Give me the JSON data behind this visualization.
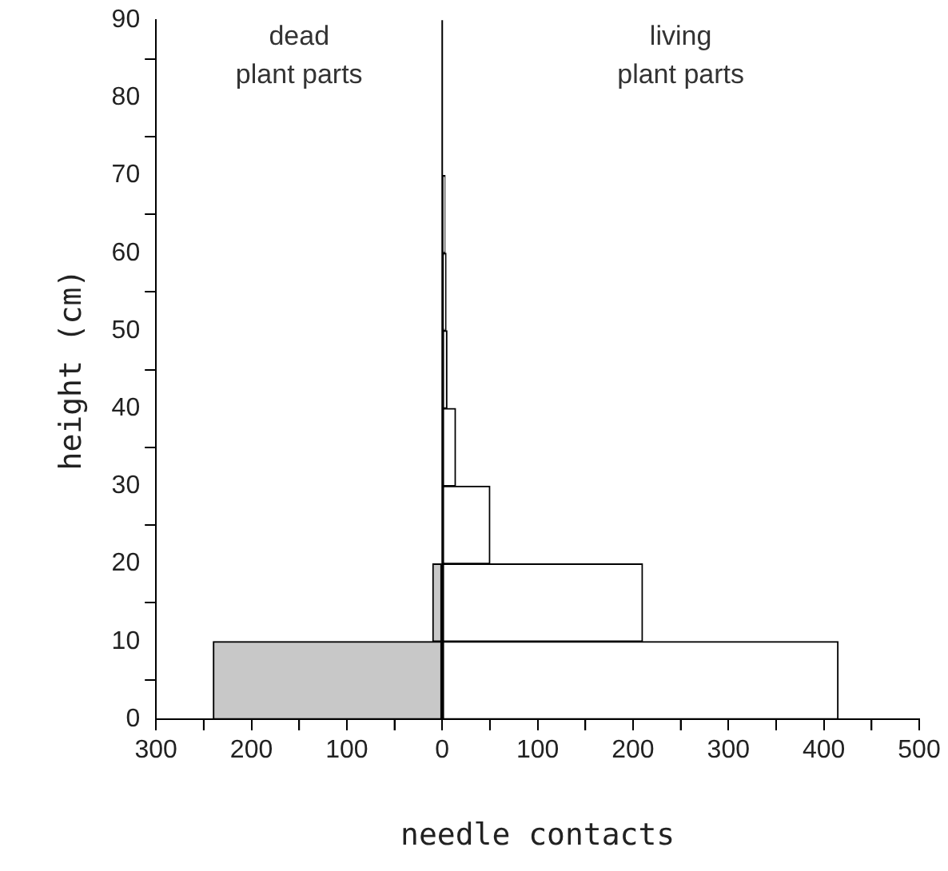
{
  "chart_data": {
    "type": "histogram",
    "orientation": "horizontal",
    "xlabel": "needle contacts",
    "ylabel": "height (cm)",
    "annotations": [
      "dead\nplant parts",
      "living\nplant parts"
    ],
    "bins": [
      0,
      10,
      20,
      30,
      40,
      50,
      60,
      70
    ],
    "series": [
      {
        "color": "#c8c8c8",
        "values": [
          -240,
          -10,
          null,
          null,
          null,
          null,
          null
        ]
      },
      {
        "color": "#ffffff",
        "values": [
          415,
          210,
          50,
          14,
          5,
          4,
          3
        ]
      }
    ],
    "xlim": [
      -300,
      500
    ],
    "xticks": [
      {
        "value": -300,
        "label": "300"
      },
      {
        "value": -250,
        "label": null
      },
      {
        "value": -200,
        "label": "200"
      },
      {
        "value": -150,
        "label": null
      },
      {
        "value": -100,
        "label": "100"
      },
      {
        "value": -50,
        "label": null
      },
      {
        "value": 0,
        "label": "0"
      },
      {
        "value": 50,
        "label": null
      },
      100,
      {
        "value": 150,
        "label": null
      },
      200,
      {
        "value": 250,
        "label": null
      },
      300,
      {
        "value": 350,
        "label": null
      },
      400,
      {
        "value": 450,
        "label": null
      },
      500
    ],
    "ylim": [
      0,
      90
    ],
    "yticks": [
      0,
      10,
      20,
      30,
      40,
      50,
      60,
      70,
      80,
      90
    ],
    "ref_lines": [
      {
        "axis": "x",
        "value": 0,
        "color": "#000000"
      }
    ],
    "grid": false,
    "legend": false
  }
}
